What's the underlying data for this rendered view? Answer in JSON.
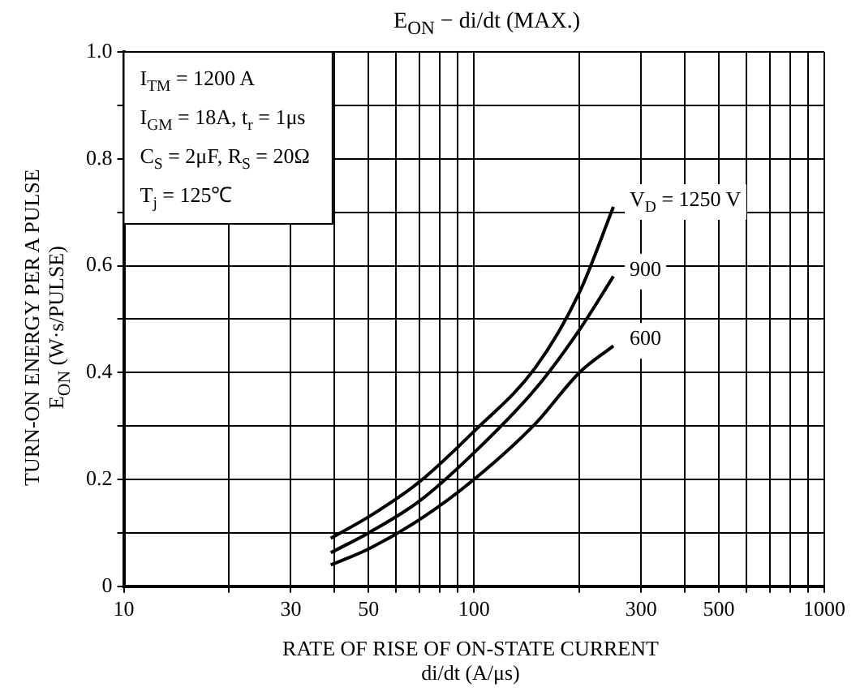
{
  "chart_data": {
    "type": "line",
    "title": "E$_{ON}$ − di/dt      (MAX.)",
    "xlabel": "RATE OF RISE OF ON-STATE CURRENT\ndi/dt  (A/μs)",
    "ylabel": "TURN-ON ENERGY PER A PULSE\nE$_{ON}$  (W·s/PULSE)",
    "log": "x",
    "grid": true,
    "legend": false,
    "marker": "none",
    "line_style": "solid",
    "x": [
      39,
      50,
      70,
      100,
      150,
      200,
      250
    ],
    "series": [
      {
        "name": "V$_{D}$ = 1250 V",
        "color": "#000000",
        "values": [
          0.09,
          0.13,
          0.196,
          0.29,
          0.41,
          0.55,
          0.71
        ]
      },
      {
        "name": "900",
        "color": "#000000",
        "values": [
          0.063,
          0.1,
          0.16,
          0.25,
          0.37,
          0.48,
          0.58
        ]
      },
      {
        "name": "600",
        "color": "#000000",
        "values": [
          0.04,
          0.07,
          0.125,
          0.2,
          0.305,
          0.4,
          0.45
        ]
      }
    ],
    "xlim": [
      10,
      1000
    ],
    "xticks": [
      10,
      {
        "value": 20,
        "label": null
      },
      30,
      {
        "value": 40,
        "label": null
      },
      50,
      {
        "value": 60,
        "label": null
      },
      {
        "value": 70,
        "label": null
      },
      {
        "value": 80,
        "label": null
      },
      {
        "value": 90,
        "label": null
      },
      100,
      {
        "value": 200,
        "label": null
      },
      300,
      {
        "value": 400,
        "label": null
      },
      500,
      {
        "value": 600,
        "label": null
      },
      {
        "value": 700,
        "label": null
      },
      {
        "value": 800,
        "label": null
      },
      {
        "value": 900,
        "label": null
      },
      1000
    ],
    "ylim": [
      0,
      1
    ],
    "yticks": [
      0,
      {
        "value": 0.1,
        "label": null
      },
      0.2,
      {
        "value": 0.3,
        "label": null
      },
      0.4,
      {
        "value": 0.5,
        "label": null
      },
      0.6,
      {
        "value": 0.7,
        "label": null
      },
      0.8,
      {
        "value": 0.9,
        "label": null
      },
      {
        "value": 1,
        "label": "1.0"
      }
    ],
    "annotations": [
      "I$_{TM}$ = 1200 A",
      "I$_{GM}$ = 18A, t$_{r}$ = 1μs",
      "C$_{S}$ = 2μF, R$_{S}$ = 20Ω",
      "T$_{j}$ = 125℃"
    ]
  }
}
